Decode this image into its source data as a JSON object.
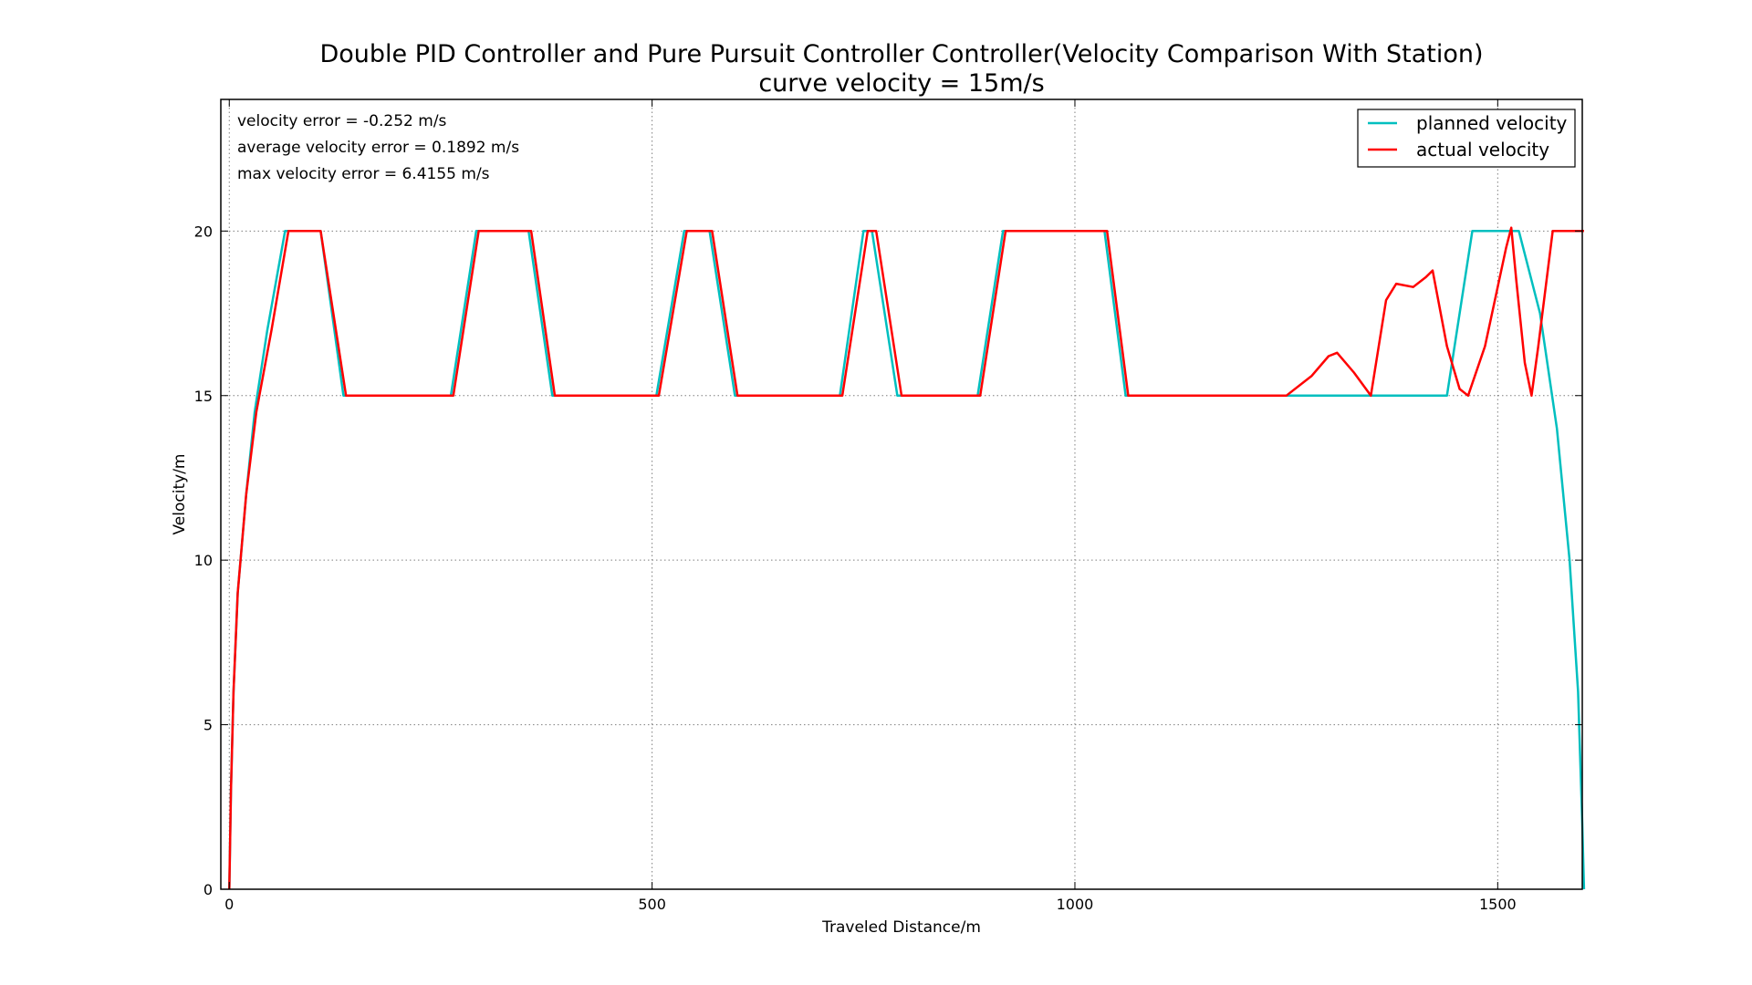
{
  "chart_data": {
    "type": "line",
    "title": "Double PID Controller and Pure Pursuit Controller Controller(Velocity Comparison With Station)",
    "subtitle": "curve velocity = 15m/s",
    "xlabel": "Traveled Distance/m",
    "ylabel": "Velocity/m",
    "xlim": [
      -10,
      1600
    ],
    "ylim": [
      0,
      24
    ],
    "xticks": [
      0,
      500,
      1000,
      1500
    ],
    "yticks": [
      0,
      5,
      10,
      15,
      20
    ],
    "grid": true,
    "legend_position": "top-right",
    "annotations": [
      "velocity error = -0.252 m/s",
      "average velocity error = 0.1892 m/s",
      "max velocity error = 6.4155 m/s"
    ],
    "series": [
      {
        "name": "planned velocity",
        "color": "#00bfbf",
        "x": [
          0,
          2,
          5,
          10,
          20,
          30,
          45,
          66,
          108,
          135,
          262,
          292,
          354,
          382,
          505,
          538,
          568,
          598,
          722,
          750,
          760,
          790,
          885,
          915,
          1035,
          1060,
          1440,
          1470,
          1525,
          1550,
          1570,
          1585,
          1595,
          1600,
          1602
        ],
        "y": [
          0,
          3,
          6,
          9,
          12,
          14.5,
          17,
          20,
          20,
          15,
          15,
          20,
          20,
          15,
          15,
          20,
          20,
          15,
          15,
          20,
          20,
          15,
          15,
          20,
          20,
          15,
          15,
          20,
          20,
          17.5,
          14,
          10,
          6,
          2,
          0
        ]
      },
      {
        "name": "actual velocity",
        "color": "#ff0000",
        "x": [
          0,
          2,
          5,
          10,
          20,
          32,
          50,
          70,
          108,
          138,
          265,
          295,
          357,
          385,
          508,
          541,
          571,
          601,
          725,
          755,
          765,
          795,
          888,
          918,
          1038,
          1063,
          1250,
          1280,
          1300,
          1310,
          1330,
          1350,
          1368,
          1380,
          1400,
          1415,
          1423,
          1440,
          1455,
          1465,
          1485,
          1510,
          1516,
          1522,
          1532,
          1540,
          1548,
          1565,
          1580,
          1602
        ],
        "y": [
          0,
          3,
          6,
          9,
          12,
          14.5,
          17,
          20,
          20,
          15,
          15,
          20,
          20,
          15,
          15,
          20,
          20,
          15,
          15,
          20,
          20,
          15,
          15,
          20,
          20,
          15,
          15,
          15.6,
          16.2,
          16.3,
          15.7,
          15,
          17.9,
          18.4,
          18.3,
          18.6,
          18.8,
          16.5,
          15.2,
          15,
          16.5,
          19.5,
          20.1,
          18.5,
          16.0,
          15,
          16.5,
          20,
          20,
          20
        ]
      }
    ]
  }
}
